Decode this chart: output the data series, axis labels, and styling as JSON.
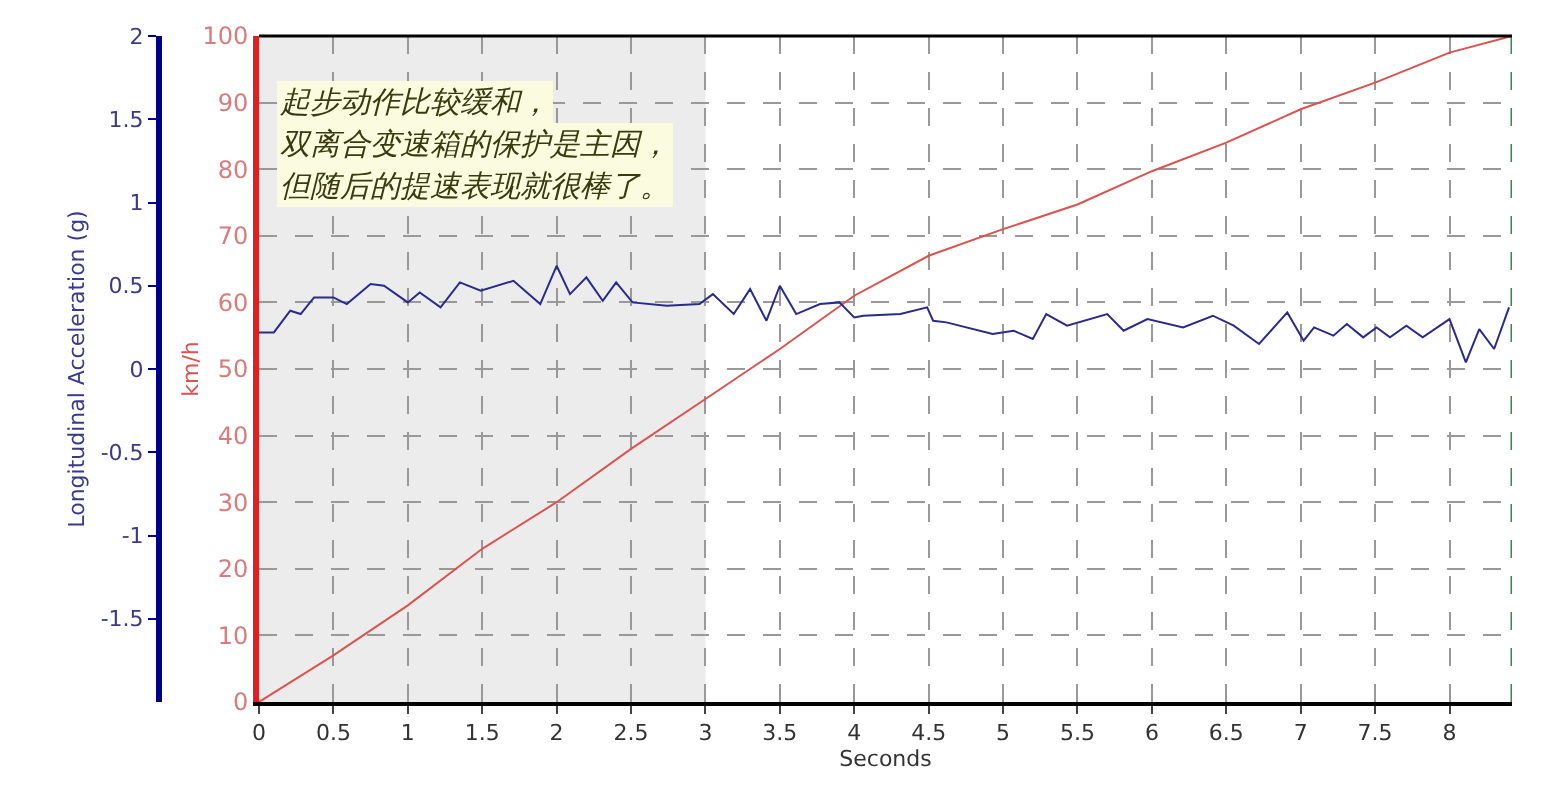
{
  "chart_data": {
    "type": "line",
    "xlabel": "Seconds",
    "ylabel": "km/h",
    "y2label": "Longitudinal Acceleration (g)",
    "xlim": [
      0,
      8.42
    ],
    "xticks": [
      0,
      0.5,
      1,
      1.5,
      2,
      2.5,
      3,
      3.5,
      4,
      4.5,
      5,
      5.5,
      6,
      6.5,
      7,
      7.5,
      8
    ],
    "ylim": [
      0,
      100
    ],
    "yticks": [
      0,
      10,
      20,
      30,
      40,
      50,
      60,
      70,
      80,
      90,
      100
    ],
    "y2lim": [
      -2,
      2
    ],
    "y2ticks": [
      -1.5,
      -1,
      -0.5,
      0,
      0.5,
      1,
      1.5,
      2
    ],
    "grid": true,
    "marker": "none",
    "line_style": "solid",
    "annotations": [
      "起步动作比较缓和，",
      "双离合变速箱的保护是主因，",
      "但随后的提速表现就很棒了。"
    ],
    "bands": [
      {
        "axis": "x",
        "from": 0,
        "to": 3,
        "color": "#ececec"
      }
    ],
    "ref_lines": [
      {
        "axis": "x",
        "value": 8.42,
        "color": "#2e8b57",
        "line_style": "dashed"
      }
    ],
    "series": [
      {
        "color": "#d9534f",
        "x": [
          0,
          0.5,
          1,
          1.5,
          2,
          2.5,
          3,
          3.5,
          4,
          4.5,
          5,
          5.5,
          6,
          6.5,
          7,
          7.5,
          8,
          8.42
        ],
        "values": [
          0,
          7,
          14.5,
          23,
          30,
          38,
          45.5,
          53,
          61,
          67,
          71,
          74.7,
          79.7,
          84,
          89,
          93,
          97.5,
          100
        ]
      },
      {
        "color": "#2a2a8c",
        "axis": "y2",
        "x": [
          0,
          0.1,
          0.21,
          0.28,
          0.37,
          0.5,
          0.59,
          0.75,
          0.84,
          1.0,
          1.08,
          1.22,
          1.35,
          1.49,
          1.71,
          1.89,
          2.0,
          2.09,
          2.2,
          2.31,
          2.4,
          2.51,
          2.74,
          2.96,
          3.05,
          3.19,
          3.3,
          3.41,
          3.5,
          3.61,
          3.77,
          3.9,
          4.0,
          4.06,
          4.31,
          4.49,
          4.53,
          4.62,
          4.93,
          5.07,
          5.2,
          5.29,
          5.43,
          5.7,
          5.81,
          5.97,
          6.21,
          6.41,
          6.55,
          6.72,
          6.91,
          7.02,
          7.09,
          7.22,
          7.31,
          7.42,
          7.51,
          7.6,
          7.71,
          7.82,
          8.0,
          8.11,
          8.2,
          8.3,
          8.4
        ],
        "values": [
          0.22,
          0.22,
          0.35,
          0.33,
          0.43,
          0.43,
          0.39,
          0.51,
          0.5,
          0.4,
          0.46,
          0.37,
          0.52,
          0.47,
          0.53,
          0.39,
          0.62,
          0.45,
          0.55,
          0.41,
          0.52,
          0.4,
          0.38,
          0.39,
          0.45,
          0.33,
          0.48,
          0.29,
          0.5,
          0.33,
          0.39,
          0.4,
          0.31,
          0.32,
          0.33,
          0.37,
          0.29,
          0.28,
          0.21,
          0.23,
          0.18,
          0.33,
          0.26,
          0.33,
          0.23,
          0.3,
          0.25,
          0.32,
          0.26,
          0.15,
          0.34,
          0.17,
          0.25,
          0.2,
          0.27,
          0.19,
          0.25,
          0.19,
          0.26,
          0.19,
          0.3,
          0.04,
          0.24,
          0.12,
          0.37
        ]
      }
    ]
  }
}
